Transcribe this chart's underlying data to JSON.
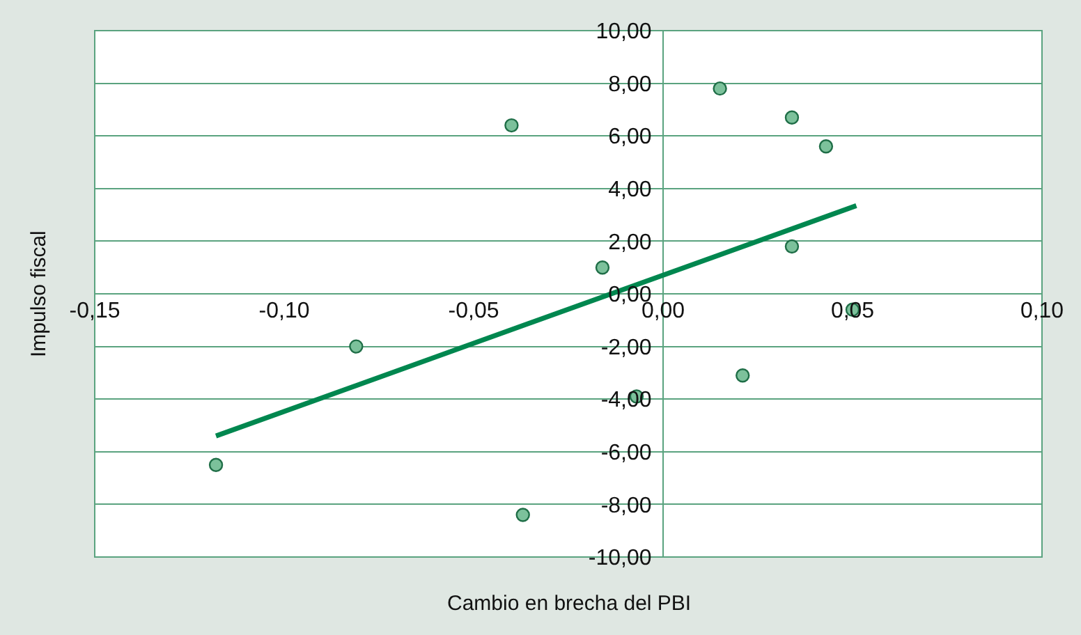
{
  "chart_data": {
    "type": "scatter",
    "xlabel": "Cambio en brecha del PBI",
    "ylabel": "Impulso fiscal",
    "series": [
      {
        "marker": "circle",
        "color": "#7cc19b",
        "x": [
          -0.081,
          -0.118,
          -0.04,
          -0.037,
          -0.016,
          -0.007,
          0.015,
          0.021,
          0.034,
          0.034,
          0.043,
          0.05
        ],
        "values": [
          -2.0,
          -6.5,
          6.4,
          -8.4,
          1.0,
          -3.9,
          7.8,
          -3.1,
          6.7,
          1.8,
          5.6,
          -0.6
        ]
      },
      {
        "type": "line",
        "color": "#00874f",
        "x": [
          -0.118,
          0.051
        ],
        "values": [
          -5.4,
          3.35
        ]
      }
    ],
    "xlim": [
      -0.15,
      0.1
    ],
    "xticks": [
      {
        "value": -0.15,
        "label": "-0,15"
      },
      {
        "value": -0.1,
        "label": "-0,10"
      },
      {
        "value": -0.05,
        "label": "-0,05"
      },
      {
        "value": 0,
        "label": "0,00"
      },
      {
        "value": 0.05,
        "label": "0,05"
      },
      {
        "value": 0.1,
        "label": "0,10"
      }
    ],
    "ylim": [
      -10,
      10
    ],
    "yticks": [
      {
        "value": -10,
        "label": "-10,00"
      },
      {
        "value": -8,
        "label": "-8,00"
      },
      {
        "value": -6,
        "label": "-6,00"
      },
      {
        "value": -4,
        "label": "-4,00"
      },
      {
        "value": -2,
        "label": "-2,00"
      },
      {
        "value": 0,
        "label": "0,00"
      },
      {
        "value": 2,
        "label": "2,00"
      },
      {
        "value": 4,
        "label": "4,00"
      },
      {
        "value": 6,
        "label": "6,00"
      },
      {
        "value": 8,
        "label": "8,00"
      },
      {
        "value": 10,
        "label": "10,00"
      }
    ],
    "grid": "y",
    "legend": false
  }
}
